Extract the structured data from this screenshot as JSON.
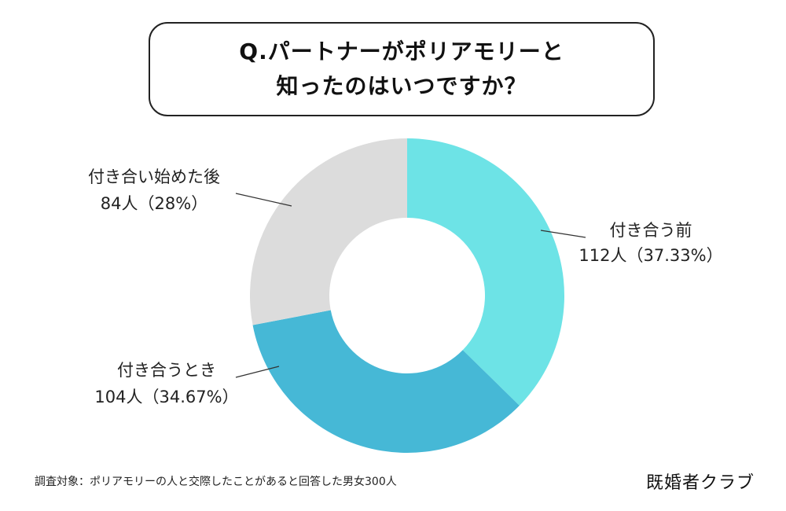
{
  "title_lines": [
    "Q.パートナーがポリアモリーと",
    "知ったのはいつですか？"
  ],
  "chart_data": {
    "type": "pie",
    "subtype": "donut",
    "total": 300,
    "slices": [
      {
        "label": "付き合う前",
        "value": 112,
        "percent_text": "112人（37.33%）",
        "color": "#6de3e6"
      },
      {
        "label": "付き合うとき",
        "value": 104,
        "percent_text": "104人（34.67%）",
        "color": "#46b8d6"
      },
      {
        "label": "付き合い始めた後",
        "value": 84,
        "percent_text": "84人（28%）",
        "color": "#dcdcdc"
      }
    ]
  },
  "footnote": "調査対象：ポリアモリーの人と交際したことがあると回答した男女300人",
  "brand": "既婚者クラブ"
}
